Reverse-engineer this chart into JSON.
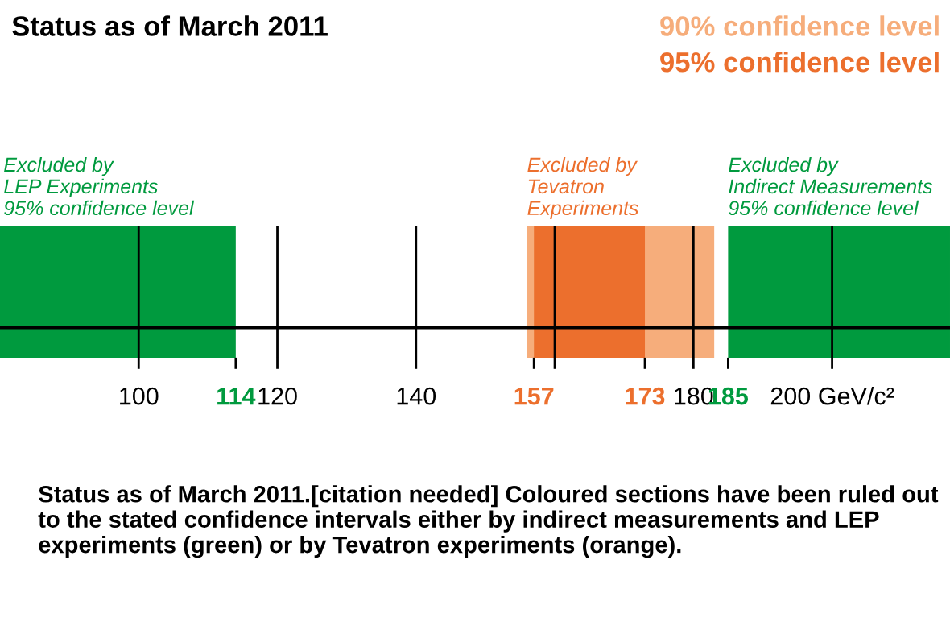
{
  "chart_data": {
    "type": "bar",
    "orientation": "horizontal",
    "title": "Status as of March 2011",
    "categories": [
      null
    ],
    "series": [
      {
        "name": "Excluded by\nLEP Experiments\n95% confidence level",
        "color": "#009a3e",
        "values": [
          34
        ],
        "base": [
          80
        ]
      },
      {
        "name": "90% confidence level",
        "color": "#f6ad7b",
        "values": [
          27
        ],
        "base": [
          156
        ]
      },
      {
        "name": "95% confidence level",
        "color": "#ec6f2d",
        "values": [
          16
        ],
        "base": [
          157
        ]
      },
      {
        "name": "Excluded by\nIndirect Measurements\n95% confidence level",
        "color": "#009a3e",
        "values": [
          32
        ],
        "base": [
          185
        ]
      }
    ],
    "xlim": [
      80,
      217
    ],
    "xticks": [
      100,
      114,
      120,
      140,
      157,
      {
        "value": 160,
        "label": null
      },
      173,
      180,
      185,
      {
        "value": 200,
        "label": "200 GeV/c²"
      }
    ],
    "annotations": [
      "Excluded by\nTevatron\nExperiments",
      "Status as of March 2011.[citation needed] Coloured sections have been ruled out to the stated confidence intervals either by indirect measurements and LEP experiments (green) or by Tevatron experiments (orange)."
    ],
    "grid": "x"
  }
}
